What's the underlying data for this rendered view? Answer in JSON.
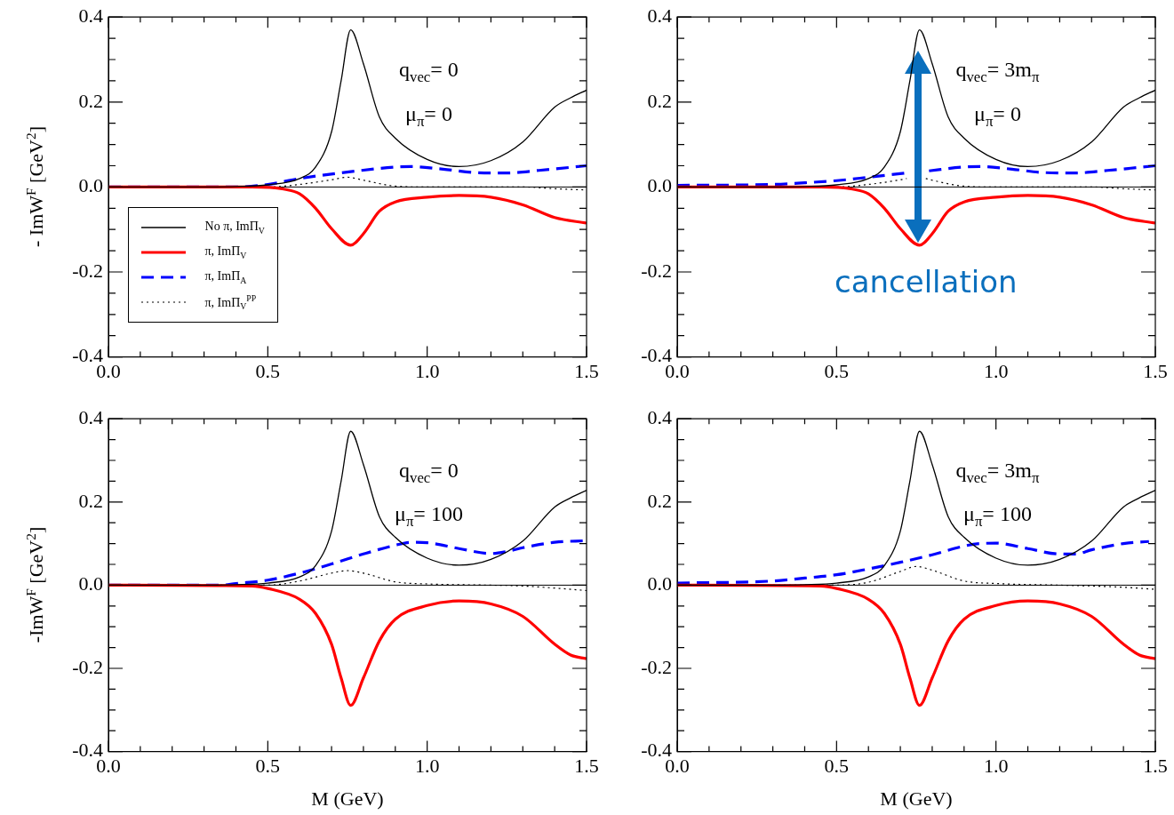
{
  "chart_data": [
    {
      "type": "line",
      "ylabel": "- ImW$^{F}$ [GeV$^{2}$]",
      "legend": "left",
      "xlim": [
        0,
        1.5
      ],
      "ylim": [
        -0.4,
        0.4
      ],
      "xticks": [
        {
          "value": 0,
          "label": "0.0"
        },
        {
          "value": 0.1,
          "label": null
        },
        {
          "value": 0.2,
          "label": null
        },
        {
          "value": 0.3,
          "label": null
        },
        {
          "value": 0.4,
          "label": null
        },
        {
          "value": 0.5,
          "label": "0.5"
        },
        {
          "value": 0.6,
          "label": null
        },
        {
          "value": 0.7,
          "label": null
        },
        {
          "value": 0.8,
          "label": null
        },
        {
          "value": 0.9,
          "label": null
        },
        {
          "value": 1,
          "label": "1.0"
        },
        {
          "value": 1.1,
          "label": null
        },
        {
          "value": 1.2,
          "label": null
        },
        {
          "value": 1.3,
          "label": null
        },
        {
          "value": 1.4,
          "label": null
        },
        {
          "value": 1.5,
          "label": "1.5"
        }
      ],
      "yticks": [
        {
          "value": -0.4,
          "label": "-0.4"
        },
        {
          "value": -0.35,
          "label": null
        },
        {
          "value": -0.3,
          "label": null
        },
        {
          "value": -0.25,
          "label": null
        },
        {
          "value": -0.2,
          "label": "-0.2"
        },
        {
          "value": -0.15,
          "label": null
        },
        {
          "value": -0.1,
          "label": null
        },
        {
          "value": -0.05,
          "label": null
        },
        {
          "value": 0,
          "label": "0.0"
        },
        {
          "value": 0.05,
          "label": null
        },
        {
          "value": 0.1,
          "label": null
        },
        {
          "value": 0.15,
          "label": null
        },
        {
          "value": 0.2,
          "label": "0.2"
        },
        {
          "value": 0.25,
          "label": null
        },
        {
          "value": 0.3,
          "label": null
        },
        {
          "value": 0.35,
          "label": null
        },
        {
          "value": 0.4,
          "label": "0.4"
        }
      ],
      "ref_lines": [
        {
          "axis": "y",
          "value": 0,
          "color": "#000000"
        }
      ],
      "annotations": [
        "q$_{vec}$= 0",
        "μ$_{π}$= 0"
      ],
      "series": [
        {
          "name": "No π, ImΠ$_{V}$",
          "color": "#000000",
          "line_style": "solid",
          "x": [
            0,
            0.3,
            0.4,
            0.5,
            0.6,
            0.65,
            0.7,
            0.73,
            0.76,
            0.8,
            0.85,
            0.9,
            1.0,
            1.1,
            1.2,
            1.3,
            1.4,
            1.45,
            1.5
          ],
          "values": [
            0,
            0,
            0.001,
            0.005,
            0.02,
            0.047,
            0.13,
            0.25,
            0.37,
            0.29,
            0.165,
            0.115,
            0.065,
            0.048,
            0.062,
            0.106,
            0.188,
            0.21,
            0.228
          ]
        },
        {
          "name": "π, ImΠ$_{V}$",
          "color": "#ff0000",
          "line_style": "solid",
          "x": [
            0,
            0.45,
            0.55,
            0.6,
            0.65,
            0.7,
            0.76,
            0.8,
            0.85,
            0.9,
            1.0,
            1.1,
            1.2,
            1.3,
            1.4,
            1.5
          ],
          "values": [
            0,
            0,
            -0.005,
            -0.016,
            -0.05,
            -0.098,
            -0.137,
            -0.11,
            -0.057,
            -0.035,
            -0.024,
            -0.02,
            -0.024,
            -0.042,
            -0.072,
            -0.085
          ]
        },
        {
          "name": "π, ImΠ$_{A}$",
          "color": "#0000ff",
          "line_style": "dashed",
          "x": [
            0,
            0.4,
            0.5,
            0.6,
            0.76,
            0.9,
            0.95,
            1.05,
            1.15,
            1.25,
            1.35,
            1.5
          ],
          "values": [
            0,
            0,
            0.006,
            0.02,
            0.036,
            0.047,
            0.048,
            0.042,
            0.034,
            0.033,
            0.039,
            0.05
          ]
        },
        {
          "name": "π, ImΠ$_{V}$$^{PP}$",
          "color": "#000000",
          "line_style": "dotted",
          "x": [
            0,
            0.5,
            0.6,
            0.7,
            0.75,
            0.8,
            0.9,
            1.0,
            1.3,
            1.4,
            1.5
          ],
          "values": [
            0,
            0,
            0.006,
            0.017,
            0.023,
            0.016,
            0.002,
            0,
            0,
            -0.004,
            -0.007
          ]
        }
      ]
    },
    {
      "type": "line",
      "xlim": [
        0,
        1.5
      ],
      "ylim": [
        -0.4,
        0.4
      ],
      "xticks": [
        {
          "value": 0,
          "label": "0.0"
        },
        {
          "value": 0.1,
          "label": null
        },
        {
          "value": 0.2,
          "label": null
        },
        {
          "value": 0.3,
          "label": null
        },
        {
          "value": 0.4,
          "label": null
        },
        {
          "value": 0.5,
          "label": "0.5"
        },
        {
          "value": 0.6,
          "label": null
        },
        {
          "value": 0.7,
          "label": null
        },
        {
          "value": 0.8,
          "label": null
        },
        {
          "value": 0.9,
          "label": null
        },
        {
          "value": 1,
          "label": "1.0"
        },
        {
          "value": 1.1,
          "label": null
        },
        {
          "value": 1.2,
          "label": null
        },
        {
          "value": 1.3,
          "label": null
        },
        {
          "value": 1.4,
          "label": null
        },
        {
          "value": 1.5,
          "label": "1.5"
        }
      ],
      "yticks": [
        {
          "value": -0.4,
          "label": "-0.4"
        },
        {
          "value": -0.35,
          "label": null
        },
        {
          "value": -0.3,
          "label": null
        },
        {
          "value": -0.25,
          "label": null
        },
        {
          "value": -0.2,
          "label": "-0.2"
        },
        {
          "value": -0.15,
          "label": null
        },
        {
          "value": -0.1,
          "label": null
        },
        {
          "value": -0.05,
          "label": null
        },
        {
          "value": 0,
          "label": "0.0"
        },
        {
          "value": 0.05,
          "label": null
        },
        {
          "value": 0.1,
          "label": null
        },
        {
          "value": 0.15,
          "label": null
        },
        {
          "value": 0.2,
          "label": "0.2"
        },
        {
          "value": 0.25,
          "label": null
        },
        {
          "value": 0.3,
          "label": null
        },
        {
          "value": 0.35,
          "label": null
        },
        {
          "value": 0.4,
          "label": "0.4"
        }
      ],
      "ref_lines": [
        {
          "axis": "y",
          "value": 0,
          "color": "#000000"
        }
      ],
      "annotations": [
        "q$_{vec}$= 3m$_{π}$",
        "μ$_{π}$= 0",
        "cancellation"
      ],
      "series": [
        {
          "color": "#000000",
          "line_style": "solid",
          "x": [
            0,
            0.3,
            0.4,
            0.5,
            0.6,
            0.65,
            0.7,
            0.73,
            0.76,
            0.8,
            0.85,
            0.9,
            1.0,
            1.1,
            1.2,
            1.3,
            1.4,
            1.45,
            1.5
          ],
          "values": [
            0,
            0,
            0.001,
            0.005,
            0.02,
            0.047,
            0.13,
            0.25,
            0.37,
            0.29,
            0.165,
            0.115,
            0.065,
            0.048,
            0.062,
            0.106,
            0.188,
            0.21,
            0.228
          ]
        },
        {
          "color": "#ff0000",
          "line_style": "solid",
          "x": [
            0,
            0.45,
            0.55,
            0.6,
            0.65,
            0.7,
            0.76,
            0.8,
            0.85,
            0.9,
            1.0,
            1.1,
            1.2,
            1.3,
            1.4,
            1.5
          ],
          "values": [
            0,
            0,
            -0.005,
            -0.016,
            -0.05,
            -0.098,
            -0.137,
            -0.11,
            -0.057,
            -0.035,
            -0.024,
            -0.02,
            -0.024,
            -0.042,
            -0.072,
            -0.085
          ]
        },
        {
          "color": "#0000ff",
          "line_style": "dashed",
          "x": [
            0,
            0.3,
            0.4,
            0.5,
            0.6,
            0.73,
            0.76,
            0.79,
            0.9,
            0.95,
            1.05,
            1.15,
            1.25,
            1.35,
            1.5
          ],
          "values": [
            0.004,
            0.006,
            0.01,
            0.015,
            0.023,
            0.034,
            null,
            0.038,
            0.047,
            0.048,
            0.042,
            0.034,
            0.033,
            0.039,
            0.05
          ]
        },
        {
          "color": "#000000",
          "line_style": "dotted",
          "x": [
            0,
            0.5,
            0.6,
            0.7,
            0.72,
            0.75,
            0.78,
            0.8,
            0.9,
            1.0,
            1.3,
            1.4,
            1.5
          ],
          "values": [
            0,
            0,
            0.006,
            0.017,
            0.02,
            null,
            0.02,
            0.016,
            0.002,
            0,
            0,
            -0.004,
            -0.007
          ]
        }
      ]
    },
    {
      "type": "line",
      "xlabel": "M (GeV)",
      "ylabel": "-ImW$^{F}$ [GeV$^{2}$]",
      "xlim": [
        0,
        1.5
      ],
      "ylim": [
        -0.4,
        0.4
      ],
      "xticks": [
        {
          "value": 0,
          "label": "0.0"
        },
        {
          "value": 0.1,
          "label": null
        },
        {
          "value": 0.2,
          "label": null
        },
        {
          "value": 0.3,
          "label": null
        },
        {
          "value": 0.4,
          "label": null
        },
        {
          "value": 0.5,
          "label": "0.5"
        },
        {
          "value": 0.6,
          "label": null
        },
        {
          "value": 0.7,
          "label": null
        },
        {
          "value": 0.8,
          "label": null
        },
        {
          "value": 0.9,
          "label": null
        },
        {
          "value": 1,
          "label": "1.0"
        },
        {
          "value": 1.1,
          "label": null
        },
        {
          "value": 1.2,
          "label": null
        },
        {
          "value": 1.3,
          "label": null
        },
        {
          "value": 1.4,
          "label": null
        },
        {
          "value": 1.5,
          "label": "1.5"
        }
      ],
      "yticks": [
        {
          "value": -0.4,
          "label": "-0.4"
        },
        {
          "value": -0.35,
          "label": null
        },
        {
          "value": -0.3,
          "label": null
        },
        {
          "value": -0.25,
          "label": null
        },
        {
          "value": -0.2,
          "label": "-0.2"
        },
        {
          "value": -0.15,
          "label": null
        },
        {
          "value": -0.1,
          "label": null
        },
        {
          "value": -0.05,
          "label": null
        },
        {
          "value": 0,
          "label": "0.0"
        },
        {
          "value": 0.05,
          "label": null
        },
        {
          "value": 0.1,
          "label": null
        },
        {
          "value": 0.15,
          "label": null
        },
        {
          "value": 0.2,
          "label": "0.2"
        },
        {
          "value": 0.25,
          "label": null
        },
        {
          "value": 0.3,
          "label": null
        },
        {
          "value": 0.35,
          "label": null
        },
        {
          "value": 0.4,
          "label": "0.4"
        }
      ],
      "ref_lines": [
        {
          "axis": "y",
          "value": 0,
          "color": "#000000"
        }
      ],
      "annotations": [
        "q$_{vec}$= 0",
        "μ$_{π}$= 100"
      ],
      "series": [
        {
          "color": "#000000",
          "line_style": "solid",
          "x": [
            0,
            0.3,
            0.4,
            0.5,
            0.6,
            0.65,
            0.7,
            0.73,
            0.76,
            0.8,
            0.85,
            0.9,
            1.0,
            1.1,
            1.2,
            1.3,
            1.4,
            1.45,
            1.5
          ],
          "values": [
            0,
            0,
            0.001,
            0.005,
            0.02,
            0.047,
            0.13,
            0.25,
            0.37,
            0.29,
            0.165,
            0.115,
            0.065,
            0.048,
            0.062,
            0.106,
            0.188,
            0.21,
            0.228
          ]
        },
        {
          "color": "#ff0000",
          "line_style": "solid",
          "x": [
            0,
            0.45,
            0.5,
            0.6,
            0.65,
            0.7,
            0.73,
            0.76,
            0.8,
            0.85,
            0.9,
            1.0,
            1.1,
            1.2,
            1.3,
            1.4,
            1.45,
            1.5
          ],
          "values": [
            0,
            -0.002,
            -0.008,
            -0.034,
            -0.068,
            -0.142,
            -0.223,
            -0.289,
            -0.223,
            -0.134,
            -0.082,
            -0.049,
            -0.038,
            -0.045,
            -0.075,
            -0.142,
            -0.168,
            -0.177
          ]
        },
        {
          "color": "#0000ff",
          "line_style": "dashed",
          "x": [
            0,
            0.35,
            0.4,
            0.5,
            0.6,
            0.7,
            0.8,
            0.9,
            0.95,
            1.0,
            1.1,
            1.2,
            1.25,
            1.3,
            1.4,
            1.5
          ],
          "values": [
            0,
            0,
            0.004,
            0.012,
            0.029,
            0.051,
            0.075,
            0.096,
            0.103,
            0.102,
            0.088,
            0.076,
            0.081,
            0.09,
            0.103,
            0.107
          ]
        },
        {
          "color": "#000000",
          "line_style": "dotted",
          "x": [
            0,
            0.5,
            0.6,
            0.7,
            0.75,
            0.8,
            0.9,
            1.0,
            1.2,
            1.3,
            1.4,
            1.5
          ],
          "values": [
            0,
            0,
            0.01,
            0.029,
            0.035,
            0.029,
            0.008,
            0.003,
            0,
            -0.002,
            -0.007,
            -0.013
          ]
        }
      ]
    },
    {
      "type": "line",
      "xlabel": "M (GeV)",
      "xlim": [
        0,
        1.5
      ],
      "ylim": [
        -0.4,
        0.4
      ],
      "xticks": [
        {
          "value": 0,
          "label": "0.0"
        },
        {
          "value": 0.1,
          "label": null
        },
        {
          "value": 0.2,
          "label": null
        },
        {
          "value": 0.3,
          "label": null
        },
        {
          "value": 0.4,
          "label": null
        },
        {
          "value": 0.5,
          "label": "0.5"
        },
        {
          "value": 0.6,
          "label": null
        },
        {
          "value": 0.7,
          "label": null
        },
        {
          "value": 0.8,
          "label": null
        },
        {
          "value": 0.9,
          "label": null
        },
        {
          "value": 1,
          "label": "1.0"
        },
        {
          "value": 1.1,
          "label": null
        },
        {
          "value": 1.2,
          "label": null
        },
        {
          "value": 1.3,
          "label": null
        },
        {
          "value": 1.4,
          "label": null
        },
        {
          "value": 1.5,
          "label": "1.5"
        }
      ],
      "yticks": [
        {
          "value": -0.4,
          "label": "-0.4"
        },
        {
          "value": -0.35,
          "label": null
        },
        {
          "value": -0.3,
          "label": null
        },
        {
          "value": -0.25,
          "label": null
        },
        {
          "value": -0.2,
          "label": "-0.2"
        },
        {
          "value": -0.15,
          "label": null
        },
        {
          "value": -0.1,
          "label": null
        },
        {
          "value": -0.05,
          "label": null
        },
        {
          "value": 0,
          "label": "0.0"
        },
        {
          "value": 0.05,
          "label": null
        },
        {
          "value": 0.1,
          "label": null
        },
        {
          "value": 0.15,
          "label": null
        },
        {
          "value": 0.2,
          "label": "0.2"
        },
        {
          "value": 0.25,
          "label": null
        },
        {
          "value": 0.3,
          "label": null
        },
        {
          "value": 0.35,
          "label": null
        },
        {
          "value": 0.4,
          "label": "0.4"
        }
      ],
      "ref_lines": [
        {
          "axis": "y",
          "value": 0,
          "color": "#000000"
        }
      ],
      "annotations": [
        "q$_{vec}$= 3m$_{π}$",
        "μ$_{π}$= 100"
      ],
      "series": [
        {
          "color": "#000000",
          "line_style": "solid",
          "x": [
            0,
            0.3,
            0.4,
            0.5,
            0.6,
            0.65,
            0.7,
            0.73,
            0.76,
            0.8,
            0.85,
            0.9,
            1.0,
            1.1,
            1.2,
            1.3,
            1.4,
            1.45,
            1.5
          ],
          "values": [
            0,
            0,
            0.001,
            0.005,
            0.02,
            0.047,
            0.13,
            0.25,
            0.37,
            0.29,
            0.165,
            0.115,
            0.065,
            0.048,
            0.062,
            0.106,
            0.188,
            0.21,
            0.228
          ]
        },
        {
          "color": "#ff0000",
          "line_style": "solid",
          "x": [
            0,
            0.45,
            0.5,
            0.6,
            0.65,
            0.7,
            0.73,
            0.76,
            0.8,
            0.85,
            0.9,
            1.0,
            1.1,
            1.2,
            1.3,
            1.4,
            1.45,
            1.5
          ],
          "values": [
            0,
            -0.002,
            -0.008,
            -0.034,
            -0.068,
            -0.142,
            -0.223,
            -0.289,
            -0.223,
            -0.134,
            -0.082,
            -0.049,
            -0.038,
            -0.045,
            -0.075,
            -0.142,
            -0.168,
            -0.177
          ]
        },
        {
          "color": "#0000ff",
          "line_style": "dashed",
          "x": [
            0,
            0.3,
            0.4,
            0.5,
            0.6,
            0.7,
            0.8,
            0.9,
            0.95,
            1.0,
            1.1,
            1.2,
            1.25,
            1.3,
            1.4,
            1.48
          ],
          "values": [
            0.005,
            0.01,
            0.017,
            0.025,
            0.039,
            0.055,
            0.073,
            0.094,
            0.1,
            0.101,
            0.088,
            0.075,
            0.075,
            0.085,
            0.1,
            0.105
          ]
        },
        {
          "color": "#000000",
          "line_style": "dotted",
          "x": [
            0,
            0.5,
            0.6,
            0.7,
            0.75,
            0.8,
            0.9,
            1.0,
            1.2,
            1.3,
            1.4,
            1.5
          ],
          "values": [
            0,
            0,
            0.007,
            0.033,
            0.045,
            0.036,
            0.01,
            0.004,
            0,
            -0.002,
            -0.005,
            -0.01
          ]
        }
      ]
    }
  ]
}
